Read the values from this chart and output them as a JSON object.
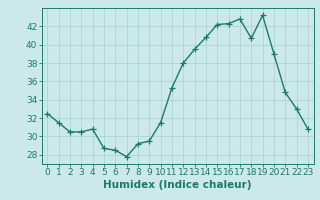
{
  "x": [
    0,
    1,
    2,
    3,
    4,
    5,
    6,
    7,
    8,
    9,
    10,
    11,
    12,
    13,
    14,
    15,
    16,
    17,
    18,
    19,
    20,
    21,
    22,
    23
  ],
  "y": [
    32.5,
    31.5,
    30.5,
    30.5,
    30.8,
    28.7,
    28.5,
    27.8,
    29.2,
    29.5,
    31.5,
    35.3,
    38.0,
    39.5,
    40.8,
    42.2,
    42.3,
    42.8,
    40.7,
    43.2,
    39.0,
    34.8,
    33.0,
    30.8
  ],
  "line_color": "#1a7a6e",
  "marker": "+",
  "marker_size": 4,
  "bg_color": "#cce9e9",
  "grid_color": "#aed4d4",
  "axis_color": "#1a7a6e",
  "tick_color": "#1a7a6e",
  "xlabel": "Humidex (Indice chaleur)",
  "xlim": [
    -0.5,
    23.5
  ],
  "ylim": [
    27,
    44
  ],
  "yticks": [
    28,
    30,
    32,
    34,
    36,
    38,
    40,
    42
  ],
  "xticks": [
    0,
    1,
    2,
    3,
    4,
    5,
    6,
    7,
    8,
    9,
    10,
    11,
    12,
    13,
    14,
    15,
    16,
    17,
    18,
    19,
    20,
    21,
    22,
    23
  ],
  "xlabel_fontsize": 7.5,
  "tick_fontsize": 6.5,
  "linewidth": 1.0
}
